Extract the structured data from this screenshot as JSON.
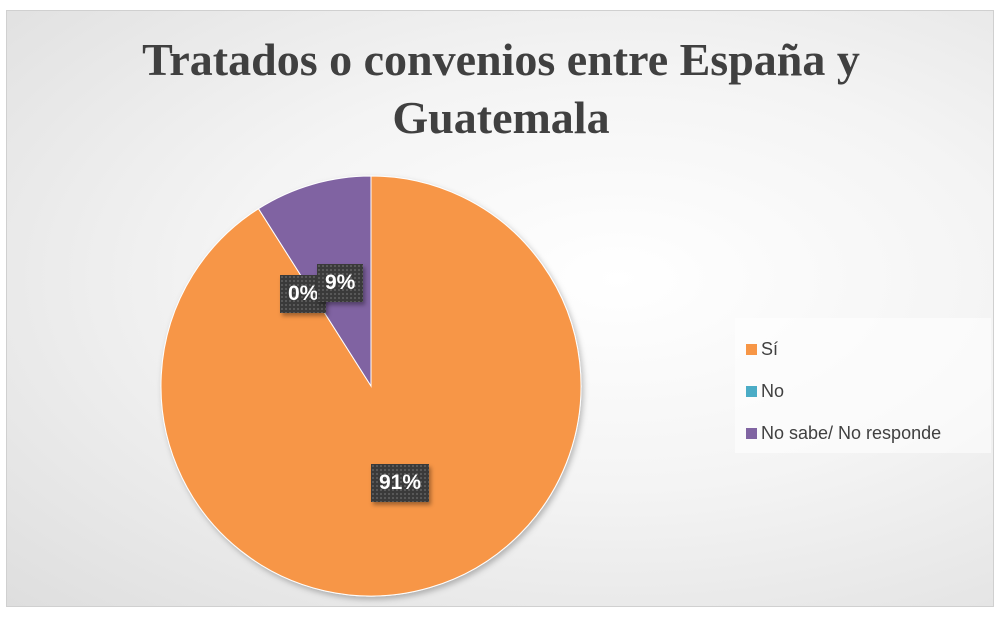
{
  "chart_data": {
    "type": "pie",
    "title": "Tratados o convenios entre España y Guatemala",
    "title_lines": [
      "Tratados o convenios entre España y",
      "Guatemala"
    ],
    "categories": [
      "Sí",
      "No",
      "No sabe/ No responde"
    ],
    "values": [
      91,
      0,
      9
    ],
    "data_labels": [
      "91%",
      "0%",
      "9%"
    ],
    "colors": [
      "#F79646",
      "#4BACC6",
      "#8064A2"
    ],
    "legend": "right",
    "start_angle_deg": 0,
    "direction": "clockwise"
  }
}
